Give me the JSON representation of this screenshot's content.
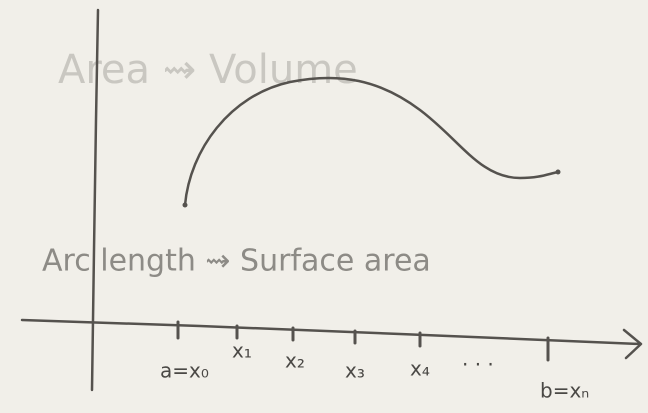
{
  "notes": [
    "Area ⇝ Volume",
    "Arc length ⇝ Surface area"
  ],
  "axis_labels": [
    "a=x₀",
    "x₁",
    "x₂",
    "x₃",
    "x₄",
    "· · ·",
    "b=xₙ"
  ]
}
